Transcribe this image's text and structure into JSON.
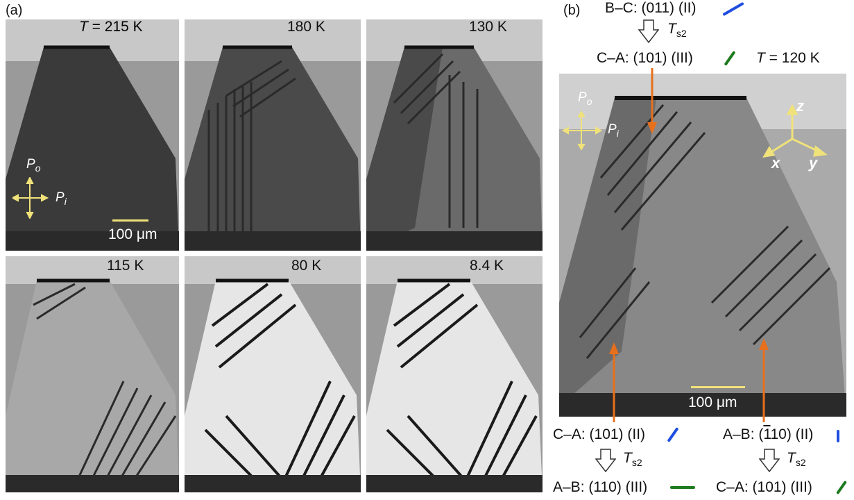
{
  "panel_a": {
    "label": "(a)",
    "images": [
      {
        "temp_prefix": "T",
        "temp_value": " = 215 K"
      },
      {
        "temp_value": "180 K"
      },
      {
        "temp_value": "130 K"
      },
      {
        "temp_value": "115 K"
      },
      {
        "temp_value": "80 K"
      },
      {
        "temp_value": "8.4 K"
      }
    ],
    "pol_o": "P",
    "pol_o_sub": "o",
    "pol_i": "P",
    "pol_i_sub": "i",
    "scale_bar": "100 μm"
  },
  "panel_b": {
    "label": "(b)",
    "temp_prefix": "T",
    "temp_value": " = 120 K",
    "top": {
      "line1": "B–C: (011) (II)",
      "ts_main": "T",
      "ts_sub": "s2",
      "line2": "C–A: (101) (III)"
    },
    "bottom_left": {
      "line1": "C–A: (101) (II)",
      "ts_main": "T",
      "ts_sub": "s2",
      "line2": "A–B: (110) (III)"
    },
    "bottom_right": {
      "line1_pre": "A–B: (",
      "line1_bar": "1",
      "line1_post": "10) (II)",
      "ts_main": "T",
      "ts_sub": "s2",
      "line2": "C–A: (101) (III)"
    },
    "axes": {
      "x": "x",
      "y": "y",
      "z": "z"
    },
    "pol_o": "P",
    "pol_o_sub": "o",
    "pol_i": "P",
    "pol_i_sub": "i",
    "scale_bar": "100 μm"
  },
  "colors": {
    "blue_strip": "#1f4fe0",
    "green_strip": "#1d7a1d",
    "orange_arrow": "#e8701c",
    "yellow_overlay": "#f0e27a"
  }
}
